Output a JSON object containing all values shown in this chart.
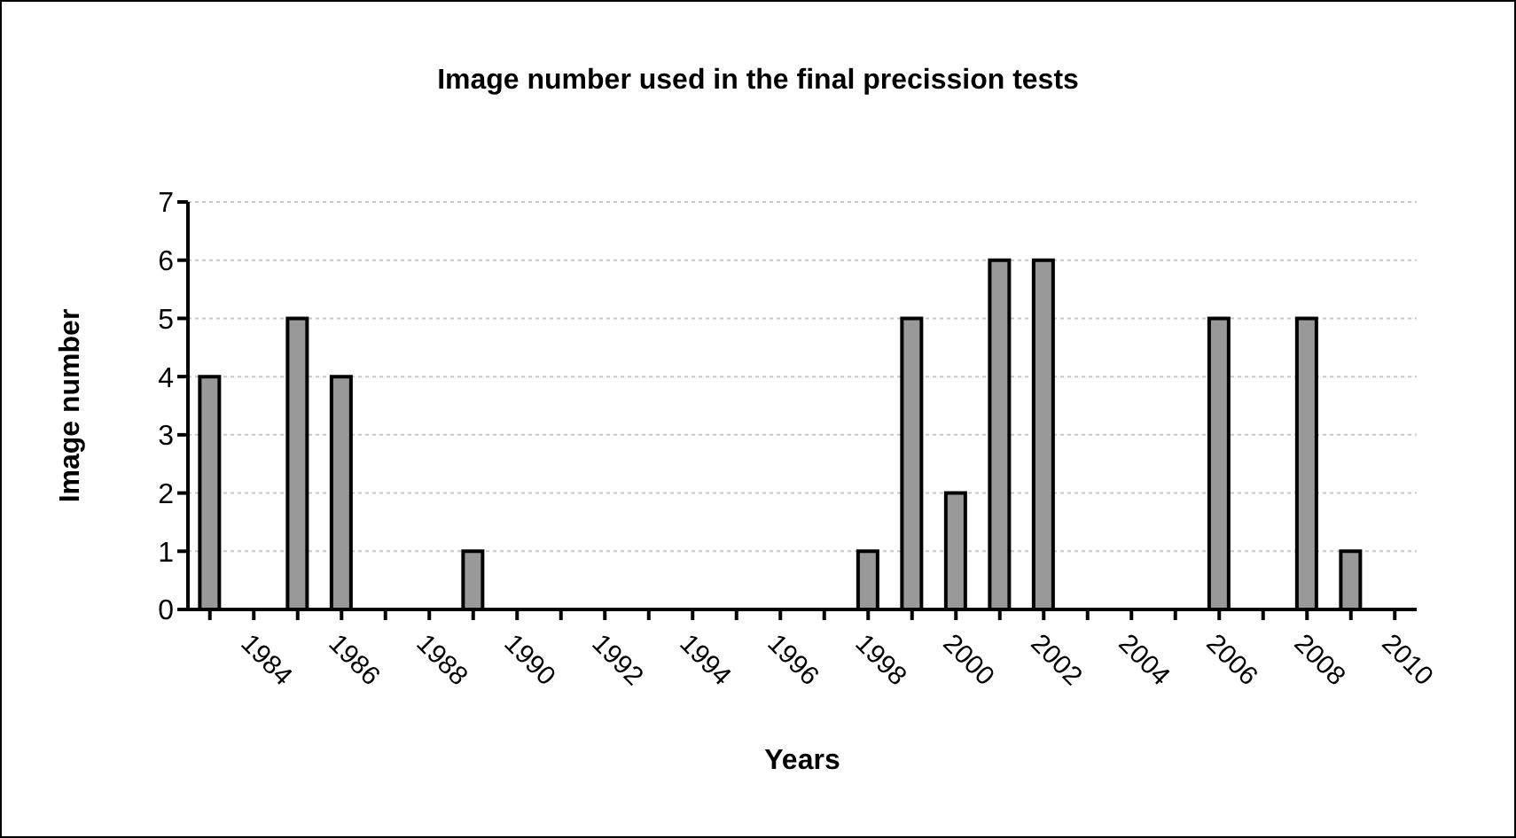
{
  "chart_data": {
    "type": "bar",
    "title": "Image number used in the final precission tests",
    "xlabel": "Years",
    "ylabel": "Image number",
    "categories": [
      null,
      "1984",
      null,
      "1986",
      null,
      "1988",
      null,
      "1990",
      null,
      "1992",
      null,
      "1994",
      null,
      "1996",
      null,
      "1998",
      null,
      "2000",
      null,
      "2002",
      null,
      "2004",
      null,
      "2006",
      null,
      "2008",
      null,
      "2010"
    ],
    "values": [
      4,
      0,
      5,
      4,
      0,
      0,
      1,
      0,
      0,
      0,
      0,
      0,
      0,
      0,
      0,
      1,
      5,
      2,
      6,
      6,
      0,
      0,
      0,
      5,
      0,
      5,
      1,
      0
    ],
    "color": "#999999",
    "ylim": [
      0,
      7
    ],
    "yticks": [
      0,
      1,
      2,
      3,
      4,
      5,
      6,
      7
    ],
    "grid": "y",
    "legend": false
  }
}
